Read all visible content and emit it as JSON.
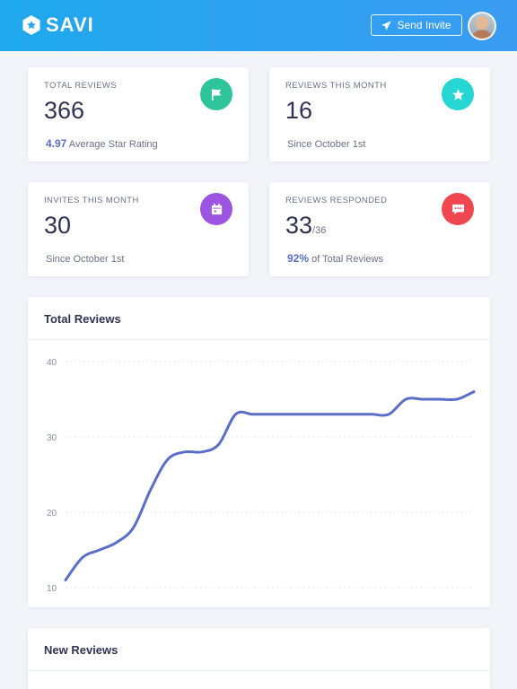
{
  "app": {
    "name": "SAVI"
  },
  "header": {
    "invite_label": "Send Invite"
  },
  "stats": [
    {
      "label": "TOTAL REVIEWS",
      "value": "366",
      "value_sub": "",
      "note_accent": "4.97",
      "note_text": " Average Star Rating",
      "icon": "flag-icon",
      "color": "#2ec59c"
    },
    {
      "label": "REVIEWS THIS MONTH",
      "value": "16",
      "value_sub": "",
      "note_accent": "",
      "note_text": "Since October 1st",
      "icon": "star-icon",
      "color": "#25d6d2"
    },
    {
      "label": "INVITES THIS MONTH",
      "value": "30",
      "value_sub": "",
      "note_accent": "",
      "note_text": "Since October 1st",
      "icon": "calendar-icon",
      "color": "#9b55e0"
    },
    {
      "label": "REVIEWS RESPONDED",
      "value": "33",
      "value_sub": "/36",
      "note_accent": "92%",
      "note_text": " of Total Reviews",
      "icon": "chat-icon",
      "color": "#f0464f"
    }
  ],
  "chart_panel": {
    "title": "Total Reviews"
  },
  "chart_data": {
    "type": "line",
    "title": "Total Reviews",
    "xlabel": "",
    "ylabel": "",
    "ylim": [
      10,
      40
    ],
    "yticks": [
      "40",
      "30",
      "20",
      "10"
    ],
    "grid": true,
    "color": "#5b6ec7",
    "series": [
      {
        "values": [
          11,
          14,
          15,
          16,
          18,
          23,
          27,
          28,
          28,
          29,
          33,
          33,
          33,
          33,
          33,
          33,
          33,
          33,
          33,
          33,
          35,
          35,
          35,
          35,
          36
        ]
      }
    ]
  },
  "reviews_panel": {
    "title": "New Reviews"
  }
}
